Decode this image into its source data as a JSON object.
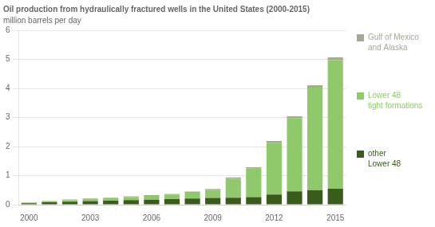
{
  "chart_data": {
    "type": "bar",
    "title": "Oil production from hydraulically fractured wells in the United States (2000-2015)",
    "subtitle": "million barrels per day",
    "categories": [
      "2000",
      null,
      null,
      "2003",
      null,
      null,
      "2006",
      null,
      null,
      "2009",
      null,
      null,
      "2012",
      null,
      null,
      "2015"
    ],
    "series": [
      {
        "name": "other\nLower 48",
        "color": "#3a5c1a",
        "values": [
          0.05,
          0.08,
          0.1,
          0.12,
          0.14,
          0.16,
          0.17,
          0.19,
          0.21,
          0.23,
          0.24,
          0.26,
          0.35,
          0.46,
          0.5,
          0.55
        ]
      },
      {
        "name": "Lower 48\ntight formations",
        "color": "#90c96b",
        "values": [
          0.02,
          0.04,
          0.06,
          0.07,
          0.09,
          0.1,
          0.13,
          0.15,
          0.2,
          0.27,
          0.65,
          0.98,
          1.78,
          2.52,
          3.53,
          4.42
        ]
      },
      {
        "name": "Gulf of Mexico\nand Alaska",
        "color": "#a8a898",
        "values": [
          0.01,
          0.01,
          0.02,
          0.02,
          0.02,
          0.03,
          0.03,
          0.03,
          0.04,
          0.04,
          0.05,
          0.05,
          0.06,
          0.06,
          0.08,
          0.1
        ]
      }
    ],
    "ylim": [
      0,
      6
    ],
    "yticks": [
      0,
      1,
      2,
      3,
      4,
      5,
      6
    ],
    "stacked": true,
    "grid": true,
    "legend": "right"
  }
}
